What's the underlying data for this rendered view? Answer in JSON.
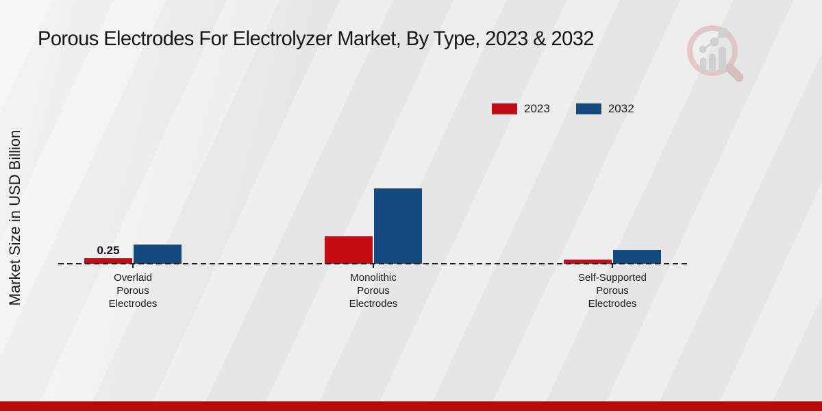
{
  "title": "Porous Electrodes For Electrolyzer Market, By Type, 2023 & 2032",
  "ylabel": "Market Size in USD Billion",
  "colors": {
    "series_2023": "#c30d12",
    "series_2032": "#154a80",
    "footer_band": "#ba0b0b",
    "baseline": "#1c1c1c",
    "background": "#ebebec",
    "text": "#1a1a1a"
  },
  "legend": {
    "position": "top-right",
    "entries": [
      {
        "label": "2023",
        "color": "#c30d12"
      },
      {
        "label": "2032",
        "color": "#154a80"
      }
    ]
  },
  "chart_data": {
    "type": "bar",
    "title": "Porous Electrodes For Electrolyzer Market, By Type, 2023 & 2032",
    "xlabel": "",
    "ylabel": "Market Size in USD Billion",
    "ylim": [
      0,
      3.5
    ],
    "grid": false,
    "legend_position": "top-right",
    "categories": [
      "Overlaid Porous Electrodes",
      "Monolithic Porous Electrodes",
      "Self-Supported Porous Electrodes"
    ],
    "series": [
      {
        "name": "2023",
        "color": "#c30d12",
        "values": [
          0.25,
          1.25,
          0.19
        ],
        "labels": [
          "0.25",
          "",
          ""
        ]
      },
      {
        "name": "2032",
        "color": "#154a80",
        "values": [
          0.88,
          3.44,
          0.63
        ],
        "labels": [
          "",
          "",
          ""
        ]
      }
    ],
    "annotations": [
      {
        "category": "Overlaid Porous Electrodes",
        "series": "2023",
        "text": "0.25"
      }
    ]
  },
  "logo": {
    "name": "market-research-magnifier-logo"
  }
}
